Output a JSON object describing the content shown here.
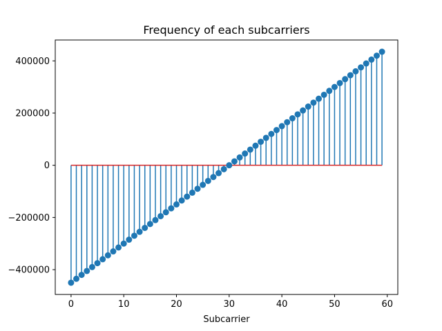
{
  "chart_data": {
    "type": "stem",
    "title": "Frequency of each subcarriers",
    "xlabel": "Subcarrier",
    "ylabel": "",
    "xlim": [
      -3,
      62
    ],
    "ylim": [
      -495000,
      480000
    ],
    "xticks": [
      0,
      10,
      20,
      30,
      40,
      50,
      60
    ],
    "yticks": [
      -400000,
      -200000,
      0,
      200000,
      400000
    ],
    "x_tick_labels": [
      "0",
      "10",
      "20",
      "30",
      "40",
      "50",
      "60"
    ],
    "y_tick_labels": [
      "−400000",
      "−200000",
      "0",
      "200000",
      "400000"
    ],
    "grid": false,
    "colors": {
      "stem": "#1f77b4",
      "marker": "#1f77b4",
      "baseline": "#d62728"
    },
    "baseline": 0,
    "x": [
      0,
      1,
      2,
      3,
      4,
      5,
      6,
      7,
      8,
      9,
      10,
      11,
      12,
      13,
      14,
      15,
      16,
      17,
      18,
      19,
      20,
      21,
      22,
      23,
      24,
      25,
      26,
      27,
      28,
      29,
      30,
      31,
      32,
      33,
      34,
      35,
      36,
      37,
      38,
      39,
      40,
      41,
      42,
      43,
      44,
      45,
      46,
      47,
      48,
      49,
      50,
      51,
      52,
      53,
      54,
      55,
      56,
      57,
      58,
      59
    ],
    "values": [
      -450000,
      -435000,
      -420000,
      -405000,
      -390000,
      -375000,
      -360000,
      -345000,
      -330000,
      -315000,
      -300000,
      -285000,
      -270000,
      -255000,
      -240000,
      -225000,
      -210000,
      -195000,
      -180000,
      -165000,
      -150000,
      -135000,
      -120000,
      -105000,
      -90000,
      -75000,
      -60000,
      -45000,
      -30000,
      -15000,
      0,
      15000,
      30000,
      45000,
      60000,
      75000,
      90000,
      105000,
      120000,
      135000,
      150000,
      165000,
      180000,
      195000,
      210000,
      225000,
      240000,
      255000,
      270000,
      285000,
      300000,
      315000,
      330000,
      345000,
      360000,
      375000,
      390000,
      405000,
      420000,
      435000
    ]
  }
}
